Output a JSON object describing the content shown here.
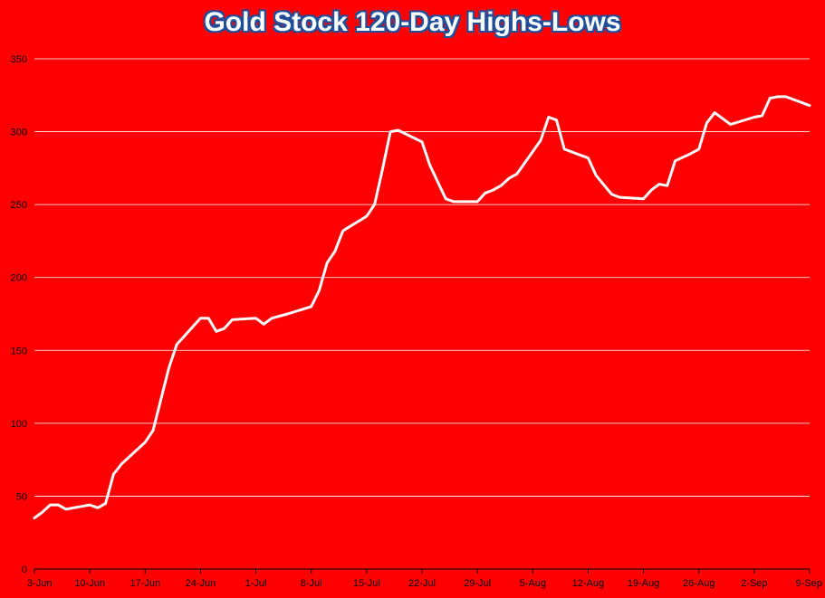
{
  "chart_data": {
    "type": "line",
    "title": "Gold Stock 120-Day Highs-Lows",
    "xlabel": "",
    "ylabel": "",
    "ylim": [
      0,
      350
    ],
    "yticks": [
      0,
      50,
      100,
      150,
      200,
      250,
      300,
      350
    ],
    "grid": true,
    "legend": "none",
    "x_tick_labels": [
      "3-Jun",
      "10-Jun",
      "17-Jun",
      "24-Jun",
      "1-Jul",
      "8-Jul",
      "15-Jul",
      "22-Jul",
      "29-Jul",
      "5-Aug",
      "12-Aug",
      "19-Aug",
      "26-Aug",
      "2-Sep",
      "9-Sep"
    ],
    "x_day_range": [
      0,
      98
    ],
    "series": [
      {
        "color": "#ffffff",
        "points": [
          [
            0,
            35
          ],
          [
            1,
            39
          ],
          [
            2,
            44
          ],
          [
            3,
            44
          ],
          [
            4,
            41
          ],
          [
            6,
            43
          ],
          [
            7,
            44
          ],
          [
            8,
            42
          ],
          [
            9,
            45
          ],
          [
            10,
            65
          ],
          [
            11,
            72
          ],
          [
            14,
            87
          ],
          [
            15,
            95
          ],
          [
            17,
            138
          ],
          [
            18,
            154
          ],
          [
            21,
            172
          ],
          [
            22,
            172
          ],
          [
            23,
            163
          ],
          [
            24,
            165
          ],
          [
            25,
            171
          ],
          [
            28,
            172
          ],
          [
            29,
            168
          ],
          [
            30,
            172
          ],
          [
            32,
            175
          ],
          [
            35,
            180
          ],
          [
            36,
            191
          ],
          [
            37,
            210
          ],
          [
            38,
            218
          ],
          [
            39,
            232
          ],
          [
            42,
            242
          ],
          [
            43,
            250
          ],
          [
            44,
            274
          ],
          [
            45,
            300
          ],
          [
            46,
            301
          ],
          [
            49,
            293
          ],
          [
            50,
            277
          ],
          [
            52,
            254
          ],
          [
            53,
            252
          ],
          [
            56,
            252
          ],
          [
            57,
            258
          ],
          [
            58,
            260
          ],
          [
            59,
            263
          ],
          [
            60,
            268
          ],
          [
            61,
            271
          ],
          [
            64,
            294
          ],
          [
            65,
            310
          ],
          [
            66,
            308
          ],
          [
            67,
            288
          ],
          [
            70,
            282
          ],
          [
            71,
            270
          ],
          [
            73,
            257
          ],
          [
            74,
            255
          ],
          [
            77,
            254
          ],
          [
            78,
            260
          ],
          [
            79,
            264
          ],
          [
            80,
            263
          ],
          [
            81,
            280
          ],
          [
            83,
            285
          ],
          [
            84,
            288
          ],
          [
            85,
            306
          ],
          [
            86,
            313
          ],
          [
            88,
            305
          ],
          [
            91,
            310
          ],
          [
            92,
            311
          ],
          [
            93,
            323
          ],
          [
            94,
            324
          ],
          [
            95,
            324
          ],
          [
            98,
            318
          ]
        ]
      }
    ]
  }
}
